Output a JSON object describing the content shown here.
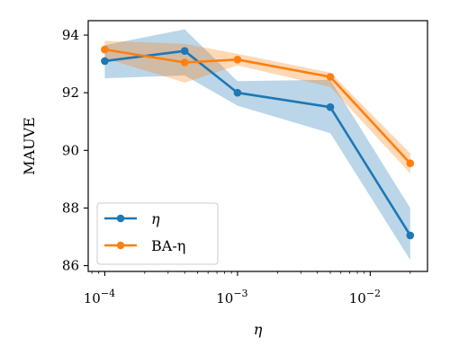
{
  "chart_data": {
    "type": "line",
    "xscale": "log",
    "xlim": [
      7.5e-05,
      0.027
    ],
    "ylim": [
      85.8,
      94.5
    ],
    "x": [
      0.0001,
      0.0004,
      0.001,
      0.005,
      0.02
    ],
    "xlabel": "η",
    "ylabel": "MAUVE",
    "x_ticks": [
      {
        "value": 0.0001,
        "base": "10",
        "exp": "−4"
      },
      {
        "value": 0.001,
        "base": "10",
        "exp": "−3"
      },
      {
        "value": 0.01,
        "base": "10",
        "exp": "−2"
      }
    ],
    "y_ticks": [
      86,
      88,
      90,
      92,
      94
    ],
    "series": [
      {
        "name": "η",
        "color": "#1f77b4",
        "values": [
          93.1,
          93.45,
          92.0,
          91.5,
          87.05
        ],
        "band_lower": [
          92.5,
          92.6,
          91.55,
          90.6,
          86.2
        ],
        "band_upper": [
          93.65,
          94.2,
          92.4,
          92.45,
          88.0
        ]
      },
      {
        "name": "BA-η",
        "color": "#ff7f0e",
        "values": [
          93.5,
          93.05,
          93.15,
          92.55,
          89.55
        ],
        "band_lower": [
          93.2,
          92.35,
          92.95,
          92.2,
          89.2
        ],
        "band_upper": [
          93.8,
          93.7,
          93.35,
          92.7,
          89.9
        ]
      }
    ],
    "legend": {
      "location": "lower-left"
    },
    "grid": false
  }
}
